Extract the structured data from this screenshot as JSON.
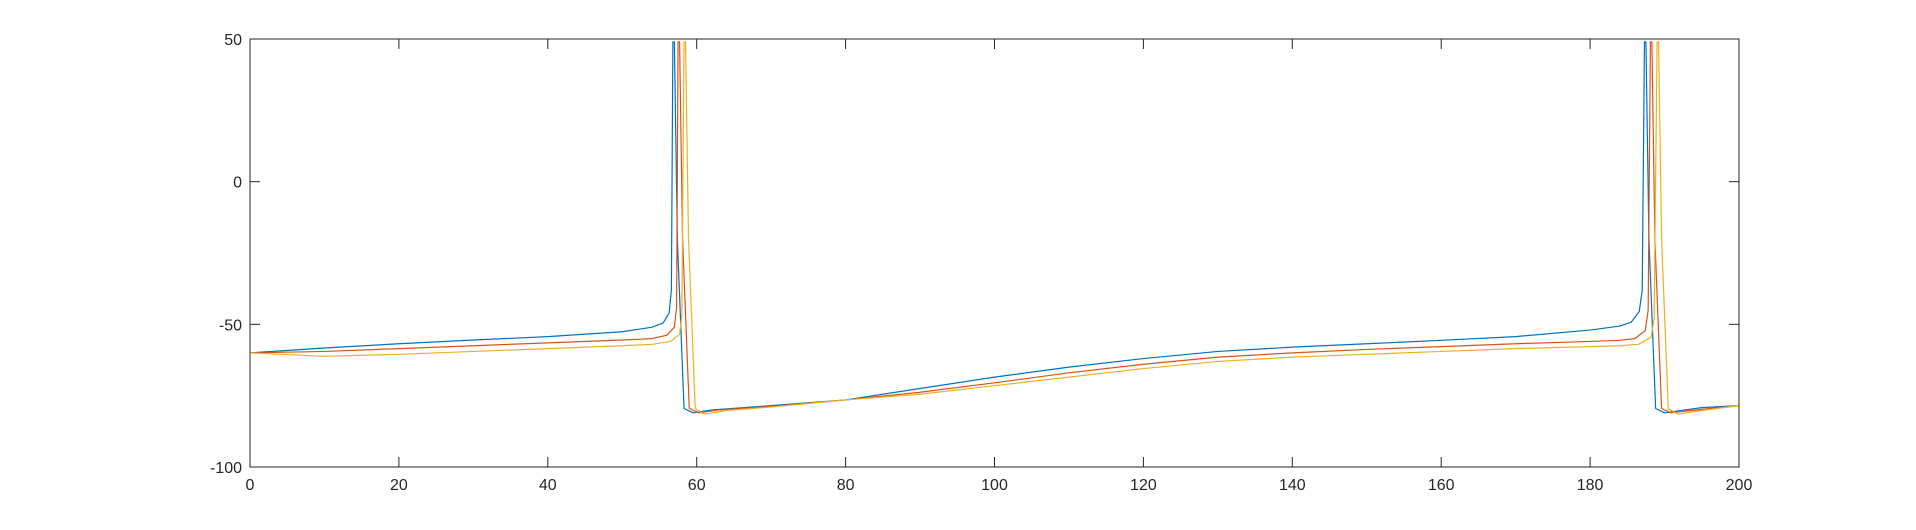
{
  "chart_data": {
    "type": "line",
    "title": "",
    "xlabel": "",
    "ylabel": "",
    "xlim": [
      0,
      200
    ],
    "ylim": [
      -100,
      50
    ],
    "xticks": [
      0,
      20,
      40,
      60,
      80,
      100,
      120,
      140,
      160,
      180,
      200
    ],
    "yticks": [
      -100,
      -50,
      0,
      50
    ],
    "xtick_labels": [
      "0",
      "20",
      "40",
      "60",
      "80",
      "100",
      "120",
      "140",
      "160",
      "180",
      "200"
    ],
    "ytick_labels": [
      "-100",
      "-50",
      "0",
      "50"
    ],
    "grid": false,
    "legend": "none",
    "series": [
      {
        "color": "#0072BD",
        "x": [
          0,
          10,
          20,
          30,
          40,
          50,
          54,
          55.5,
          56.3,
          56.6,
          56.8,
          57.0,
          57.4,
          58.3,
          59.5,
          62,
          70,
          80,
          90,
          100,
          110,
          120,
          130,
          140,
          150,
          160,
          170,
          180,
          184,
          185.5,
          186.6,
          187.0,
          187.3,
          187.5,
          187.9,
          188.8,
          190,
          195,
          200
        ],
        "y": [
          -60,
          -58.3,
          -56.8,
          -55.5,
          -54.3,
          -52.6,
          -51.0,
          -49.5,
          -46.0,
          -38.0,
          49.0,
          49.0,
          -20.0,
          -79.5,
          -81.0,
          -80.0,
          -78.5,
          -76.5,
          -72.5,
          -68.5,
          -65.0,
          -62.0,
          -59.5,
          -58.0,
          -56.8,
          -55.6,
          -54.3,
          -52.0,
          -50.6,
          -49.3,
          -45.5,
          -38.0,
          49.0,
          49.0,
          -20.0,
          -79.5,
          -81.0,
          -79.2,
          -78.5
        ]
      },
      {
        "color": "#D95319",
        "x": [
          0,
          10,
          20,
          30,
          40,
          50,
          54,
          56.0,
          57.0,
          57.3,
          57.5,
          57.7,
          58.1,
          59.0,
          60.3,
          63,
          70,
          80,
          90,
          100,
          110,
          120,
          130,
          140,
          150,
          160,
          170,
          180,
          184,
          186.0,
          187.4,
          187.8,
          188.1,
          188.3,
          188.7,
          189.6,
          190.8,
          195,
          200
        ],
        "y": [
          -60,
          -59.5,
          -58.5,
          -57.5,
          -56.5,
          -55.5,
          -55.0,
          -53.8,
          -51.0,
          -44.0,
          49.0,
          49.0,
          -20.0,
          -79.5,
          -81.0,
          -80.0,
          -78.8,
          -76.5,
          -73.8,
          -70.5,
          -67.0,
          -64.0,
          -61.5,
          -60.0,
          -58.8,
          -57.8,
          -56.8,
          -56.0,
          -55.6,
          -55.0,
          -52.2,
          -45.0,
          49.0,
          49.0,
          -20.0,
          -79.5,
          -81.0,
          -79.8,
          -78.5
        ]
      },
      {
        "color": "#EDB120",
        "x": [
          0,
          10,
          20,
          30,
          40,
          50,
          54,
          56.5,
          57.7,
          58.0,
          58.3,
          58.5,
          58.9,
          59.8,
          61.0,
          64,
          70,
          80,
          90,
          100,
          110,
          120,
          130,
          140,
          150,
          160,
          170,
          180,
          184,
          186.5,
          188.2,
          188.6,
          189.0,
          189.2,
          189.6,
          190.5,
          191.8,
          195,
          200
        ],
        "y": [
          -60,
          -61.2,
          -60.5,
          -59.5,
          -58.5,
          -57.5,
          -57.0,
          -56.0,
          -53.5,
          -47.0,
          49.0,
          49.0,
          -20.0,
          -79.5,
          -81.5,
          -80.2,
          -79.0,
          -76.5,
          -74.5,
          -71.5,
          -68.5,
          -65.5,
          -63.0,
          -61.5,
          -60.5,
          -59.5,
          -58.5,
          -57.8,
          -57.5,
          -57.0,
          -54.5,
          -48.0,
          49.0,
          49.0,
          -20.0,
          -79.5,
          -81.5,
          -80.2,
          -78.5
        ]
      }
    ]
  }
}
